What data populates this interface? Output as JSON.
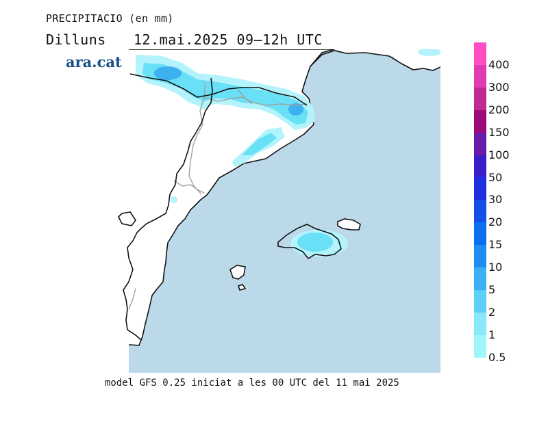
{
  "header": {
    "title": "PRECIPITACIO (en mm)",
    "day": "Dilluns",
    "datetime": "12.mai.2025 09—12h UTC"
  },
  "brand": {
    "logo_text": "ara.cat"
  },
  "footer": {
    "model_note": "model GFS 0.25 iniciat a les 00 UTC del 11 mai 2025"
  },
  "colors": {
    "sea": "#bcd9ea",
    "land": "#ffffff",
    "coast": "#111111",
    "border": "#a0a0a0",
    "precip_light": "#b3f3fb",
    "precip_mid": "#69e0f5",
    "precip_strong": "#3db0f0"
  },
  "legend": {
    "scale": [
      {
        "label": "400",
        "color": "#ff4fc2"
      },
      {
        "label": "300",
        "color": "#e03bb0"
      },
      {
        "label": "200",
        "color": "#c02894"
      },
      {
        "label": "150",
        "color": "#9c0a7a"
      },
      {
        "label": "100",
        "color": "#6a1aa8"
      },
      {
        "label": "50",
        "color": "#3a1ec8"
      },
      {
        "label": "30",
        "color": "#1e2ee0"
      },
      {
        "label": "20",
        "color": "#1450e6"
      },
      {
        "label": "15",
        "color": "#0a6ef0"
      },
      {
        "label": "10",
        "color": "#1e8cf2"
      },
      {
        "label": "5",
        "color": "#3cb0f4"
      },
      {
        "label": "2",
        "color": "#5cd0f8"
      },
      {
        "label": "1",
        "color": "#8ae8fb"
      },
      {
        "label": "0.5",
        "color": "#9ef6fc"
      }
    ]
  }
}
